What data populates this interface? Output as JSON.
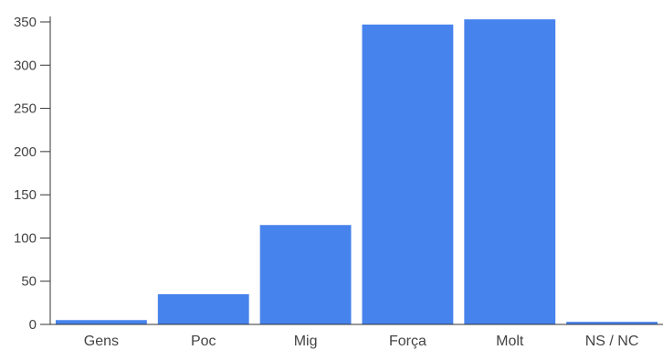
{
  "chart_data": {
    "type": "bar",
    "categories": [
      "Gens",
      "Poc",
      "Mig",
      "Força",
      "Molt",
      "NS / NC"
    ],
    "values": [
      5,
      35,
      115,
      347,
      353,
      3
    ],
    "title": "",
    "xlabel": "",
    "ylabel": "",
    "ylim": [
      0,
      350
    ],
    "yticks": [
      0,
      50,
      100,
      150,
      200,
      250,
      300,
      350
    ],
    "grid": false,
    "legend": "none",
    "bar_color": "#4783ec",
    "axis_color": "#333333"
  }
}
